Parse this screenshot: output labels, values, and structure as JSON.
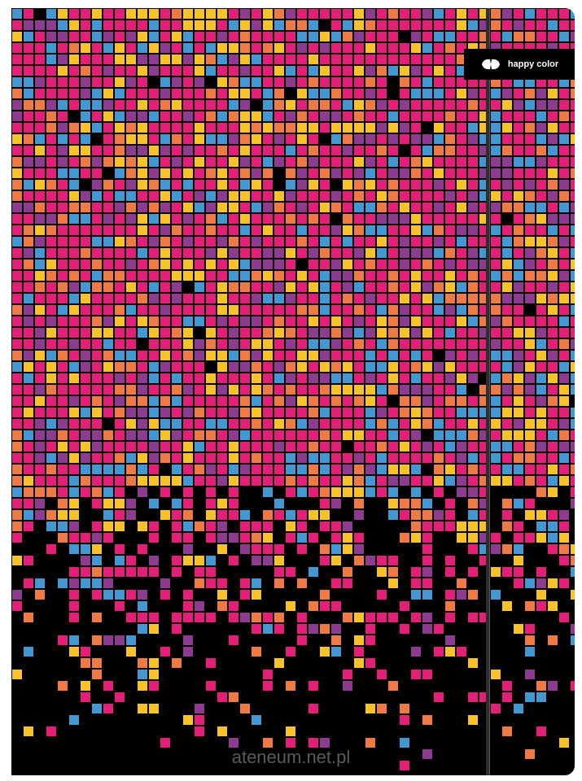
{
  "product": {
    "brand": "happy color",
    "watermark": "ateneum.net.pl"
  },
  "palette": {
    "pink": "#e41f78",
    "orange": "#ef7a45",
    "purple": "#8c3b8e",
    "blue": "#4597d2",
    "yellow": "#f8c22a",
    "black": "#000000",
    "grid_line": "#1a0a10"
  }
}
